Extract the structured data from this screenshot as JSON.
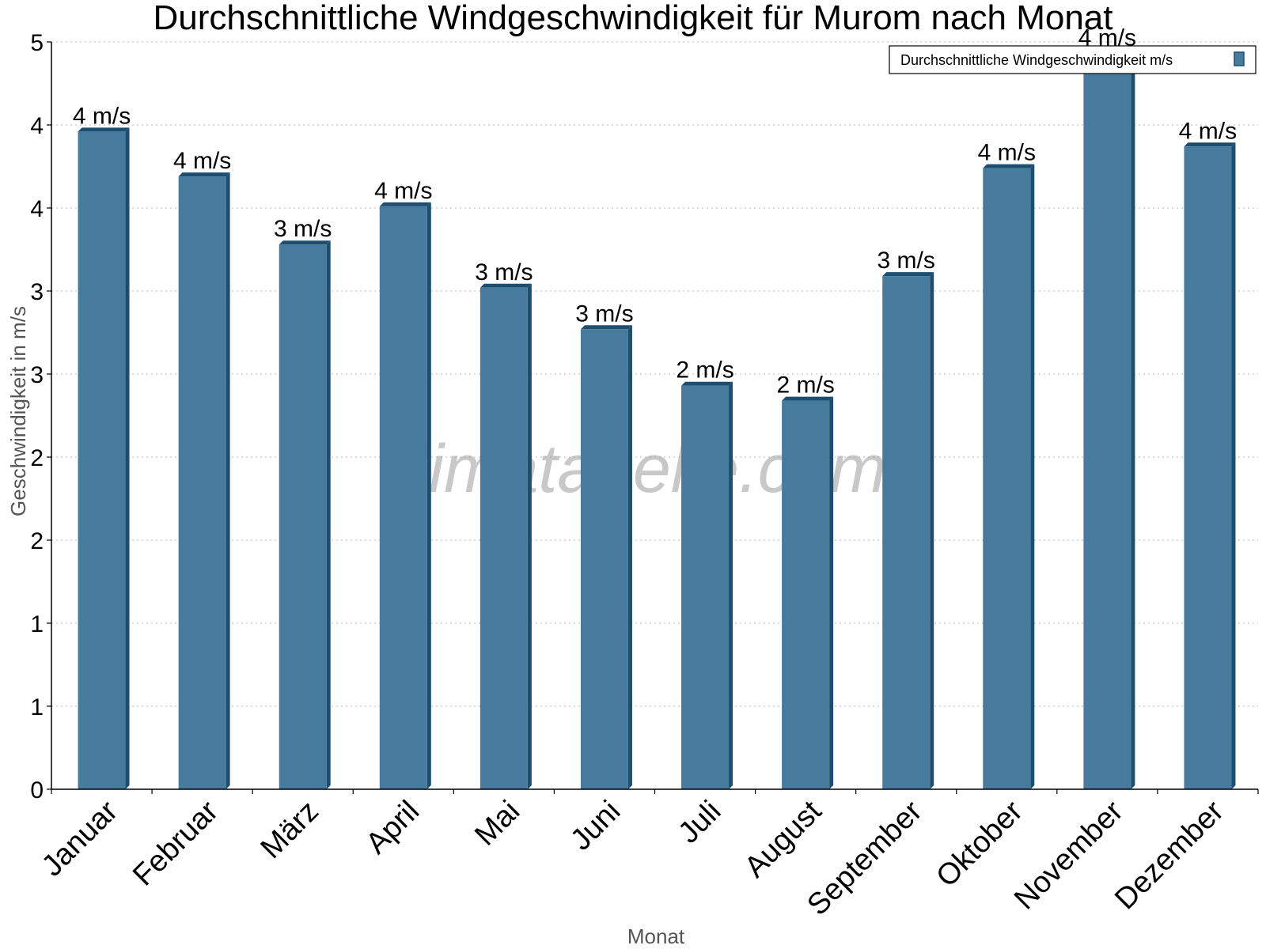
{
  "chart_data": {
    "type": "bar",
    "title": "Durchschnittliche Windgeschwindigkeit für Murom nach Monat",
    "xlabel": "Monat",
    "ylabel": "Geschwindigkeit in m/s",
    "categories": [
      "Januar",
      "Februar",
      "März",
      "April",
      "Mai",
      "Juni",
      "Juli",
      "August",
      "September",
      "Oktober",
      "November",
      "Dezember"
    ],
    "series": [
      {
        "name": "Durchschnittliche Windgeschwindigkeit m/s",
        "values": [
          3.96,
          3.69,
          3.28,
          3.51,
          3.02,
          2.77,
          2.43,
          2.34,
          3.09,
          3.74,
          4.43,
          3.87
        ],
        "data_labels": [
          "4 m/s",
          "4 m/s",
          "3 m/s",
          "4 m/s",
          "3 m/s",
          "3 m/s",
          "2 m/s",
          "2 m/s",
          "3 m/s",
          "4 m/s",
          "4 m/s",
          "4 m/s"
        ]
      }
    ],
    "ylim": [
      0,
      4.5
    ],
    "yticks": [
      0,
      0.5,
      1,
      1.5,
      2,
      2.5,
      3,
      3.5,
      4,
      4.5
    ],
    "ytick_labels": [
      "0",
      "1",
      "1",
      "2",
      "2",
      "3",
      "3",
      "4",
      "4",
      "5"
    ],
    "grid": "horizontal dotted",
    "legend_position": "top-right",
    "colors": {
      "bar_face": "#467b9e",
      "bar_side": "#1d4e70",
      "grid": "#c8c8c8"
    }
  },
  "watermark": "klimatabelle.com"
}
